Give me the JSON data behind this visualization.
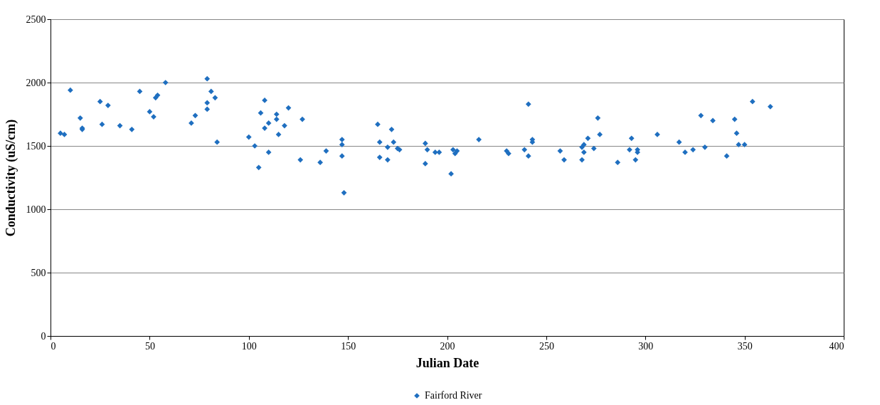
{
  "chart_data": {
    "type": "scatter",
    "xlabel": "Julian Date",
    "ylabel": "Conductivity (uS/cm)",
    "marker": "diamond",
    "grid": "y",
    "legend": "bottom",
    "xlim": [
      0,
      400
    ],
    "ylim": [
      0,
      2500
    ],
    "xticks": [
      0,
      50,
      100,
      150,
      200,
      250,
      300,
      350,
      400
    ],
    "yticks": [
      0,
      500,
      1000,
      1500,
      2000,
      2500
    ],
    "series": [
      {
        "name": "Fairford River",
        "color": "#1f6fc0",
        "x": [
          5,
          7,
          10,
          15,
          16,
          16,
          25,
          26,
          29,
          35,
          41,
          45,
          50,
          52,
          53,
          54,
          58,
          71,
          73,
          79,
          79,
          79,
          81,
          83,
          84,
          100,
          103,
          105,
          106,
          108,
          108,
          110,
          110,
          114,
          114,
          115,
          118,
          120,
          126,
          127,
          136,
          139,
          147,
          147,
          147,
          148,
          165,
          166,
          166,
          170,
          170,
          172,
          173,
          175,
          176,
          189,
          189,
          190,
          194,
          196,
          202,
          203,
          204,
          205,
          216,
          230,
          231,
          239,
          241,
          241,
          243,
          243,
          257,
          259,
          268,
          268,
          269,
          269,
          271,
          274,
          276,
          277,
          286,
          292,
          293,
          295,
          296,
          296,
          306,
          317,
          320,
          324,
          328,
          330,
          334,
          341,
          345,
          346,
          347,
          350,
          354,
          363
        ],
        "values": [
          1600,
          1590,
          1940,
          1720,
          1640,
          1630,
          1850,
          1670,
          1820,
          1660,
          1630,
          1930,
          1770,
          1730,
          1880,
          1900,
          2000,
          1680,
          1740,
          2030,
          1840,
          1790,
          1930,
          1880,
          1530,
          1570,
          1500,
          1330,
          1760,
          1860,
          1640,
          1680,
          1450,
          1750,
          1710,
          1590,
          1660,
          1800,
          1390,
          1710,
          1370,
          1460,
          1550,
          1510,
          1420,
          1130,
          1670,
          1530,
          1410,
          1490,
          1390,
          1630,
          1530,
          1480,
          1470,
          1520,
          1360,
          1470,
          1450,
          1450,
          1280,
          1470,
          1440,
          1460,
          1550,
          1460,
          1440,
          1470,
          1830,
          1420,
          1550,
          1530,
          1460,
          1390,
          1490,
          1390,
          1450,
          1510,
          1560,
          1480,
          1720,
          1590,
          1370,
          1470,
          1560,
          1390,
          1470,
          1450,
          1590,
          1530,
          1450,
          1470,
          1740,
          1490,
          1700,
          1420,
          1710,
          1600,
          1510,
          1510,
          1850,
          1810
        ]
      }
    ]
  }
}
